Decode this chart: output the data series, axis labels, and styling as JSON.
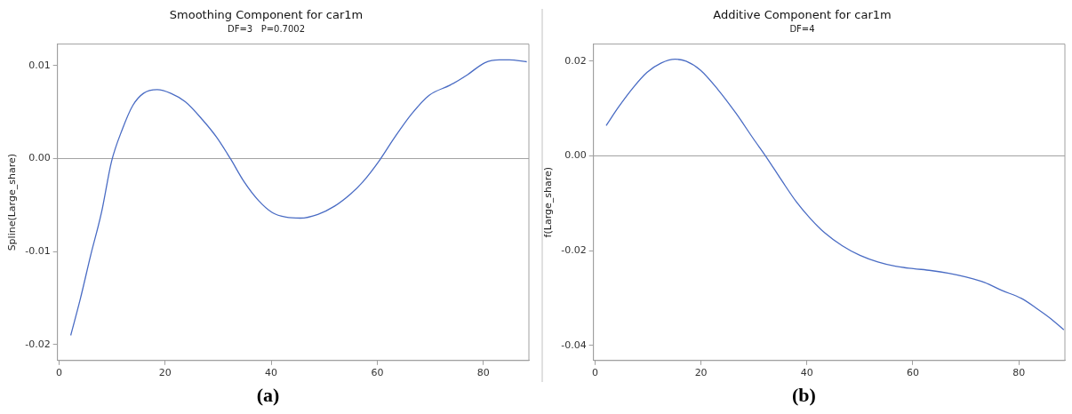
{
  "chart_data": [
    {
      "type": "line",
      "title": "Smoothing Component for car1m",
      "subtitle": "DF=3   P=0.7002",
      "ylabel": "Spline(Large_share)",
      "annotations": [
        "(a)"
      ],
      "x": [
        2.2,
        4.0,
        6.0,
        8.0,
        9.9,
        11.9,
        13.9,
        15.9,
        18.5,
        21.1,
        23.8,
        27.0,
        29.7,
        32.3,
        34.9,
        37.6,
        40.2,
        42.8,
        45.5,
        48.8,
        52.0,
        55.0,
        57.3,
        60.3,
        63.2,
        66.5,
        69.8,
        73.8,
        77.0,
        80.3,
        83.0,
        84.9,
        88.2
      ],
      "series": [
        {
          "color": "#4a6cc4",
          "values": [
            -0.019,
            -0.0151,
            -0.0103,
            -0.0058,
            -0.0003,
            0.0031,
            0.0057,
            0.007,
            0.0074,
            0.007,
            0.0061,
            0.0042,
            0.0023,
            0.0,
            -0.0025,
            -0.0045,
            -0.0058,
            -0.0063,
            -0.0064,
            -0.006,
            -0.0051,
            -0.0038,
            -0.0025,
            -0.0003,
            0.0022,
            0.0048,
            0.0068,
            0.0079,
            0.009,
            0.0103,
            0.0106,
            0.0106,
            0.0104
          ]
        }
      ],
      "xlim": [
        -0.3,
        88.6
      ],
      "xticks": [
        0,
        20,
        40,
        60,
        80
      ],
      "ylim": [
        -0.0217,
        0.0123
      ],
      "yticks": [
        -0.02,
        -0.01,
        {
          "value": 0,
          "label": "0.00"
        },
        0.01
      ],
      "ref_lines": [
        {
          "axis": "y",
          "value": 0,
          "color": "#a0a0a0"
        }
      ],
      "grid": false,
      "legend": false,
      "marker": "none",
      "line_style": "solid"
    },
    {
      "type": "line",
      "title": "Additive Component for car1m",
      "subtitle": "DF=4",
      "ylabel": "f(Large_share)",
      "annotations": [
        "(b)"
      ],
      "x": [
        2.1,
        4.5,
        7.2,
        9.8,
        12.5,
        15.1,
        17.2,
        19.9,
        23.2,
        26.6,
        29.9,
        32.3,
        35.3,
        38.0,
        40.7,
        43.3,
        46.7,
        50.0,
        53.4,
        56.7,
        60.1,
        63.4,
        66.8,
        70.1,
        73.5,
        76.8,
        80.5,
        83.5,
        86.2,
        88.5
      ],
      "series": [
        {
          "color": "#4a6cc4",
          "values": [
            0.0064,
            0.0104,
            0.0144,
            0.0176,
            0.0196,
            0.0204,
            0.02,
            0.0181,
            0.014,
            0.009,
            0.0036,
            -0.0002,
            -0.0053,
            -0.0097,
            -0.0133,
            -0.0162,
            -0.019,
            -0.021,
            -0.0224,
            -0.0233,
            -0.0238,
            -0.0242,
            -0.0248,
            -0.0256,
            -0.0267,
            -0.0284,
            -0.0301,
            -0.0323,
            -0.0345,
            -0.0367
          ]
        }
      ],
      "xlim": [
        -0.3,
        88.7
      ],
      "xticks": [
        0,
        20,
        40,
        60,
        80
      ],
      "ylim": [
        -0.0432,
        0.0236
      ],
      "yticks": [
        -0.04,
        -0.02,
        {
          "value": 0,
          "label": "0.00"
        },
        0.02
      ],
      "ref_lines": [
        {
          "axis": "y",
          "value": 0,
          "color": "#a0a0a0"
        }
      ],
      "grid": false,
      "legend": false,
      "marker": "none",
      "line_style": "solid"
    }
  ]
}
